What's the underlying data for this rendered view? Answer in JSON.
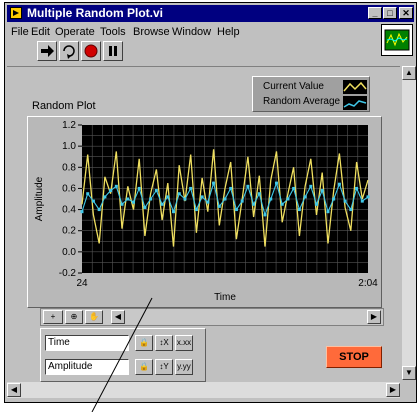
{
  "window": {
    "title": "Multiple Random Plot.vi"
  },
  "title_buttons": {
    "minimize": "_",
    "maximize": "□",
    "close": "✕"
  },
  "menu": {
    "items": [
      "File",
      "Edit",
      "Operate",
      "Tools",
      "Browse",
      "Window",
      "Help"
    ]
  },
  "toolbar": {
    "icons": [
      "run-arrow-icon",
      "run-continuously-icon",
      "abort-icon",
      "pause-icon"
    ]
  },
  "legend": {
    "current": "Current Value",
    "average": "Random Average",
    "current_color": "#f0e060",
    "average_color": "#40c8e8"
  },
  "graph": {
    "label": "Random Plot"
  },
  "chart_data": {
    "type": "line",
    "title": "Random Plot",
    "xlabel": "Time",
    "ylabel": "Amplitude",
    "ylim": [
      -0.2,
      1.2
    ],
    "yticks": [
      "1.2",
      "1.0",
      "0.8",
      "0.6",
      "0.4",
      "0.2",
      "0.0",
      "-0.2"
    ],
    "xticks": [
      "24",
      "2:04"
    ],
    "grid": true,
    "x": [
      24,
      26,
      28,
      30,
      32,
      34,
      36,
      38,
      40,
      42,
      44,
      46,
      48,
      50,
      52,
      54,
      56,
      58,
      60,
      62,
      64,
      66,
      68,
      70,
      72,
      74,
      76,
      78,
      80,
      82,
      84,
      86,
      88,
      90,
      92,
      94,
      96,
      98,
      100,
      102,
      104,
      106,
      108,
      110,
      112,
      114,
      116,
      118,
      120,
      122,
      124
    ],
    "series": [
      {
        "name": "Current Value",
        "color": "#f0e060",
        "values": [
          0.45,
          0.92,
          0.35,
          0.08,
          0.71,
          0.55,
          0.95,
          0.22,
          0.62,
          0.4,
          0.88,
          0.15,
          0.55,
          0.78,
          0.3,
          0.65,
          0.05,
          0.82,
          0.48,
          0.92,
          0.18,
          0.7,
          0.38,
          0.97,
          0.25,
          0.6,
          0.85,
          0.12,
          0.5,
          0.9,
          0.33,
          0.72,
          0.05,
          0.68,
          0.95,
          0.28,
          0.55,
          0.8,
          0.15,
          0.62,
          0.88,
          0.35,
          0.75,
          0.08,
          0.58,
          0.93,
          0.42,
          0.2,
          0.85,
          0.5,
          0.68
        ]
      },
      {
        "name": "Random Average",
        "color": "#40c8e8",
        "values": [
          0.38,
          0.55,
          0.48,
          0.4,
          0.52,
          0.58,
          0.62,
          0.45,
          0.5,
          0.47,
          0.6,
          0.42,
          0.5,
          0.58,
          0.45,
          0.52,
          0.38,
          0.55,
          0.5,
          0.6,
          0.4,
          0.52,
          0.47,
          0.65,
          0.43,
          0.5,
          0.6,
          0.4,
          0.48,
          0.62,
          0.45,
          0.55,
          0.35,
          0.5,
          0.65,
          0.45,
          0.5,
          0.6,
          0.4,
          0.52,
          0.62,
          0.45,
          0.58,
          0.38,
          0.5,
          0.64,
          0.48,
          0.4,
          0.6,
          0.48,
          0.52
        ]
      }
    ]
  },
  "palette": {
    "x_name": "Time",
    "y_name": "Amplitude",
    "x_scale_icon": "x-scale-format-icon",
    "y_scale_icon": "y-scale-format-icon"
  },
  "stop_button": {
    "label": "STOP",
    "color": "#ff6a3a"
  }
}
